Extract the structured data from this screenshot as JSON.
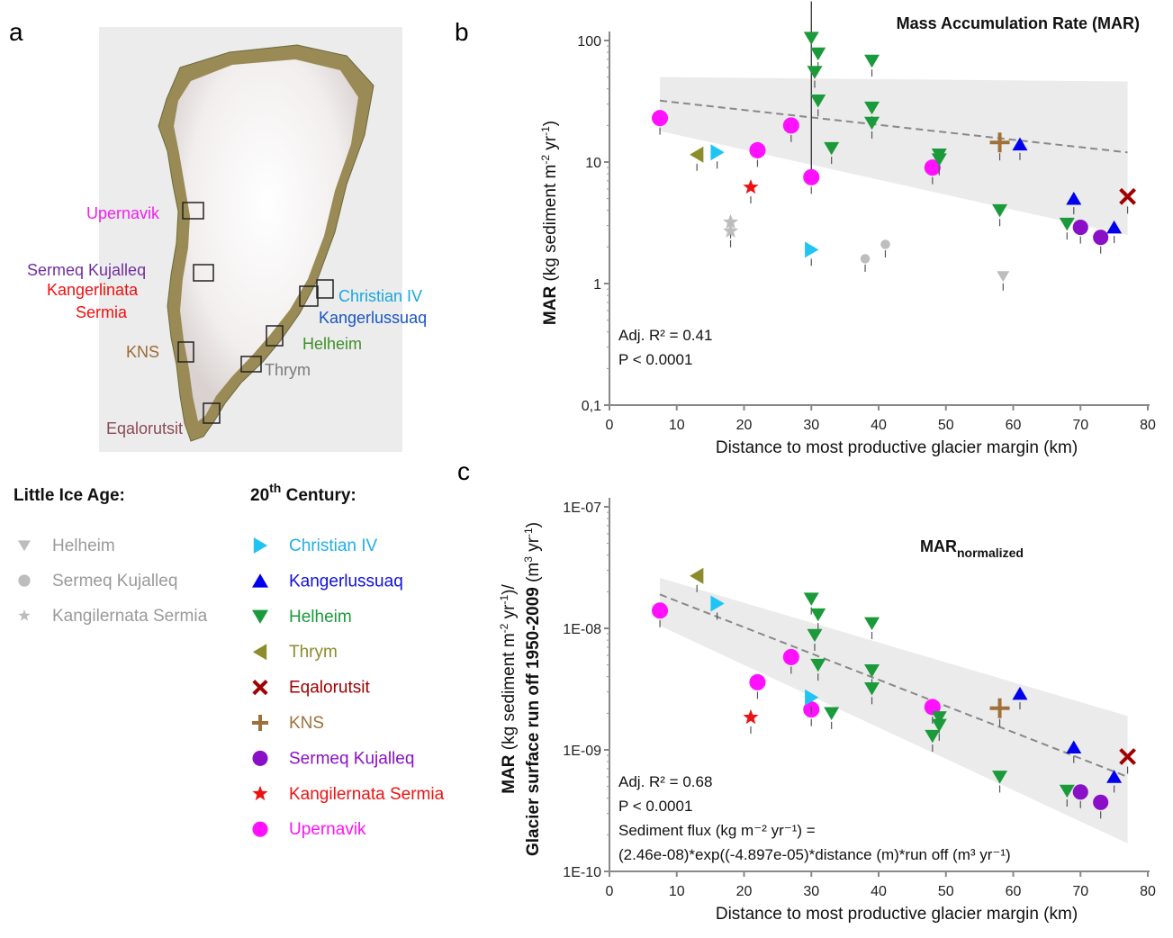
{
  "panel_labels": {
    "a": "a",
    "b": "b",
    "c": "c"
  },
  "map": {
    "labels": [
      {
        "text": "Upernavik",
        "color": "#ee22ee"
      },
      {
        "text": "Sermeq Kujalleq",
        "color": "#7030a0"
      },
      {
        "text": "Kangerlinata",
        "color": "#ee1111"
      },
      {
        "text": "Sermia",
        "color": "#ee1111"
      },
      {
        "text": "Christian IV",
        "color": "#1aa6e0"
      },
      {
        "text": "Kangerlussuaq",
        "color": "#1a55c0"
      },
      {
        "text": "Helheim",
        "color": "#3f8f28"
      },
      {
        "text": "KNS",
        "color": "#9b6a36"
      },
      {
        "text": "Thrym",
        "color": "#7a7a7a"
      },
      {
        "text": "Eqalorutsit",
        "color": "#8b4a55"
      }
    ]
  },
  "legend": {
    "lia_header": "Little Ice Age:",
    "c20_header_main": "20",
    "c20_header_sup": "th",
    "c20_header_rest": " Century:",
    "lia": [
      {
        "name": "Helheim",
        "symbol": "tri-down",
        "color": "#bdbdbd",
        "text_color": "#9a9a9a"
      },
      {
        "name": "Sermeq Kujalleq",
        "symbol": "circle",
        "color": "#bdbdbd",
        "text_color": "#9a9a9a"
      },
      {
        "name": "Kangilernata Sermia",
        "symbol": "star",
        "color": "#bdbdbd",
        "text_color": "#9a9a9a"
      }
    ],
    "c20": [
      {
        "name": "Christian IV",
        "symbol": "tri-right",
        "color": "#20c4f4",
        "text_color": "#20b0e8"
      },
      {
        "name": "Kangerlussuaq",
        "symbol": "tri-up",
        "color": "#0000ee",
        "text_color": "#1010dd"
      },
      {
        "name": "Helheim",
        "symbol": "tri-down",
        "color": "#1a9a3a",
        "text_color": "#1a9a3a"
      },
      {
        "name": "Thrym",
        "symbol": "tri-left",
        "color": "#8c8c2a",
        "text_color": "#8c8c2a"
      },
      {
        "name": "Eqalorutsit",
        "symbol": "x",
        "color": "#a00000",
        "text_color": "#a00000"
      },
      {
        "name": "KNS",
        "symbol": "plus",
        "color": "#a0703a",
        "text_color": "#a0703a"
      },
      {
        "name": "Sermeq Kujalleq",
        "symbol": "circle",
        "color": "#8a10c8",
        "text_color": "#8a10c8"
      },
      {
        "name": "Kangilernata Sermia",
        "symbol": "star",
        "color": "#ee1111",
        "text_color": "#ee1111"
      },
      {
        "name": "Upernavik",
        "symbol": "circle",
        "color": "#ff10ff",
        "text_color": "#ff10ff"
      }
    ]
  },
  "chart_data": [
    {
      "type": "scatter",
      "panel": "b",
      "title": "Mass Accumulation Rate (MAR)",
      "xlabel": "Distance to most productive glacier margin (km)",
      "ylabel_bold": "MAR",
      "ylabel_rest": " (kg sediment m",
      "ylabel_sup1": "-2",
      "ylabel_mid": " yr",
      "ylabel_sup2": "-1",
      "ylabel_end": ")",
      "xlim": [
        0,
        80
      ],
      "xticks": [
        "0",
        "10",
        "20",
        "30",
        "40",
        "50",
        "60",
        "70",
        "80"
      ],
      "ylim": [
        0.1,
        100
      ],
      "yscale": "log",
      "yticks": [
        "0,1",
        "1",
        "10",
        "100"
      ],
      "annotation": [
        "Adj. R² = 0.41",
        "P < 0.0001"
      ],
      "fit": {
        "x": [
          7.5,
          77
        ],
        "y": [
          32,
          12
        ]
      },
      "band": {
        "upper": [
          [
            7.5,
            50
          ],
          [
            77,
            46
          ]
        ],
        "lower": [
          [
            7.5,
            18
          ],
          [
            77,
            2.5
          ]
        ]
      },
      "vline": {
        "x": 30,
        "y": [
          7.5,
          210
        ]
      },
      "points": [
        {
          "series": "Upernavik",
          "x": 7.5,
          "y": 23
        },
        {
          "series": "Upernavik",
          "x": 22,
          "y": 12.5
        },
        {
          "series": "Upernavik",
          "x": 27,
          "y": 20
        },
        {
          "series": "Upernavik",
          "x": 30,
          "y": 7.5
        },
        {
          "series": "Upernavik",
          "x": 48,
          "y": 9
        },
        {
          "series": "Thrym",
          "x": 13,
          "y": 11.5
        },
        {
          "series": "Christian IV",
          "x": 16,
          "y": 12
        },
        {
          "series": "Christian IV",
          "x": 30,
          "y": 1.9
        },
        {
          "series": "Kangilernata Sermia",
          "x": 21,
          "y": 6.2
        },
        {
          "series": "Kangilernata Sermia LIA",
          "x": 18,
          "y": 3.2
        },
        {
          "series": "Kangilernata Sermia LIA",
          "x": 18,
          "y": 2.7
        },
        {
          "series": "Sermeq Kujalleq LIA",
          "x": 38,
          "y": 1.6
        },
        {
          "series": "Sermeq Kujalleq LIA",
          "x": 41,
          "y": 2.1
        },
        {
          "series": "Helheim LIA",
          "x": 58.5,
          "y": 1.15
        },
        {
          "series": "Helheim",
          "x": 30,
          "y": 105
        },
        {
          "series": "Helheim",
          "x": 31,
          "y": 78
        },
        {
          "series": "Helheim",
          "x": 30.5,
          "y": 55
        },
        {
          "series": "Helheim",
          "x": 31,
          "y": 32
        },
        {
          "series": "Helheim",
          "x": 33,
          "y": 13
        },
        {
          "series": "Helheim",
          "x": 39,
          "y": 68
        },
        {
          "series": "Helheim",
          "x": 39,
          "y": 28
        },
        {
          "series": "Helheim",
          "x": 39,
          "y": 21
        },
        {
          "series": "Helheim",
          "x": 49,
          "y": 11.5
        },
        {
          "series": "Helheim",
          "x": 49,
          "y": 10.5
        },
        {
          "series": "Helheim",
          "x": 58,
          "y": 4
        },
        {
          "series": "Helheim",
          "x": 68,
          "y": 3.1
        },
        {
          "series": "KNS",
          "x": 58,
          "y": 14.5
        },
        {
          "series": "Kangerlussuaq",
          "x": 61,
          "y": 14
        },
        {
          "series": "Kangerlussuaq",
          "x": 69,
          "y": 5
        },
        {
          "series": "Kangerlussuaq",
          "x": 75,
          "y": 2.9
        },
        {
          "series": "Sermeq Kujalleq",
          "x": 70,
          "y": 2.9
        },
        {
          "series": "Sermeq Kujalleq",
          "x": 73,
          "y": 2.4
        },
        {
          "series": "Eqalorutsit",
          "x": 77,
          "y": 5.2
        }
      ]
    },
    {
      "type": "scatter",
      "panel": "c",
      "title_main": "MAR",
      "title_sub": "normalized",
      "xlabel": "Distance to most productive glacier margin (km)",
      "ylabel_line1_bold": "MAR",
      "ylabel_line1_rest": " (kg sediment m",
      "ylabel_line1_sup1": "-2",
      "ylabel_line1_mid": " yr",
      "ylabel_line1_sup2": "-1",
      "ylabel_line1_end": ")/",
      "ylabel_line2_bold": "Glacier surface run off 1950-2009",
      "ylabel_line2_rest": " (m",
      "ylabel_line2_sup1": "3",
      "ylabel_line2_mid": " yr",
      "ylabel_line2_sup2": "-1",
      "ylabel_line2_end": ")",
      "xlim": [
        0,
        80
      ],
      "xticks": [
        "0",
        "10",
        "20",
        "30",
        "40",
        "50",
        "60",
        "70",
        "80"
      ],
      "ylim": [
        1e-10,
        1e-07
      ],
      "yscale": "log",
      "yticks": [
        "1E-10",
        "1E-09",
        "1E-08",
        "1E-07"
      ],
      "annotation": [
        "Adj. R² = 0.68",
        "P < 0.0001",
        "Sediment flux (kg m⁻² yr⁻¹) =",
        "(2.46e-08)*exp((-4.897e-05)*distance (m)*run off (m³ yr⁻¹)"
      ],
      "fit": {
        "x": [
          7.5,
          77
        ],
        "y": [
          1.9e-08,
          6e-10
        ]
      },
      "band": {
        "upper": [
          [
            7.5,
            2.6e-08
          ],
          [
            77,
            1.9e-09
          ]
        ],
        "lower": [
          [
            7.5,
            1.05e-08
          ],
          [
            77,
            1.7e-10
          ]
        ]
      },
      "points": [
        {
          "series": "Upernavik",
          "x": 7.5,
          "y": 1.4e-08
        },
        {
          "series": "Upernavik",
          "x": 22,
          "y": 3.6e-09
        },
        {
          "series": "Upernavik",
          "x": 27,
          "y": 5.8e-09
        },
        {
          "series": "Upernavik",
          "x": 30,
          "y": 2.15e-09
        },
        {
          "series": "Upernavik",
          "x": 48,
          "y": 2.25e-09
        },
        {
          "series": "Thrym",
          "x": 13,
          "y": 2.7e-08
        },
        {
          "series": "Christian IV",
          "x": 16,
          "y": 1.6e-08
        },
        {
          "series": "Christian IV",
          "x": 30,
          "y": 2.7e-09
        },
        {
          "series": "Kangilernata Sermia",
          "x": 21,
          "y": 1.85e-09
        },
        {
          "series": "Helheim",
          "x": 30,
          "y": 1.75e-08
        },
        {
          "series": "Helheim",
          "x": 31,
          "y": 1.3e-08
        },
        {
          "series": "Helheim",
          "x": 30.5,
          "y": 8.8e-09
        },
        {
          "series": "Helheim",
          "x": 31,
          "y": 5e-09
        },
        {
          "series": "Helheim",
          "x": 33,
          "y": 2e-09
        },
        {
          "series": "Helheim",
          "x": 39,
          "y": 1.1e-08
        },
        {
          "series": "Helheim",
          "x": 39,
          "y": 4.5e-09
        },
        {
          "series": "Helheim",
          "x": 39,
          "y": 3.2e-09
        },
        {
          "series": "Helheim",
          "x": 48,
          "y": 1.3e-09
        },
        {
          "series": "Helheim",
          "x": 49,
          "y": 1.85e-09
        },
        {
          "series": "Helheim",
          "x": 49,
          "y": 1.6e-09
        },
        {
          "series": "Helheim",
          "x": 58,
          "y": 6e-10
        },
        {
          "series": "Helheim",
          "x": 68,
          "y": 4.6e-10
        },
        {
          "series": "KNS",
          "x": 58,
          "y": 2.2e-09
        },
        {
          "series": "Kangerlussuaq",
          "x": 61,
          "y": 2.9e-09
        },
        {
          "series": "Kangerlussuaq",
          "x": 69,
          "y": 1.05e-09
        },
        {
          "series": "Kangerlussuaq",
          "x": 75,
          "y": 6e-10
        },
        {
          "series": "Sermeq Kujalleq",
          "x": 70,
          "y": 4.5e-10
        },
        {
          "series": "Sermeq Kujalleq",
          "x": 73,
          "y": 3.7e-10
        },
        {
          "series": "Eqalorutsit",
          "x": 77,
          "y": 8.8e-10
        }
      ]
    }
  ]
}
